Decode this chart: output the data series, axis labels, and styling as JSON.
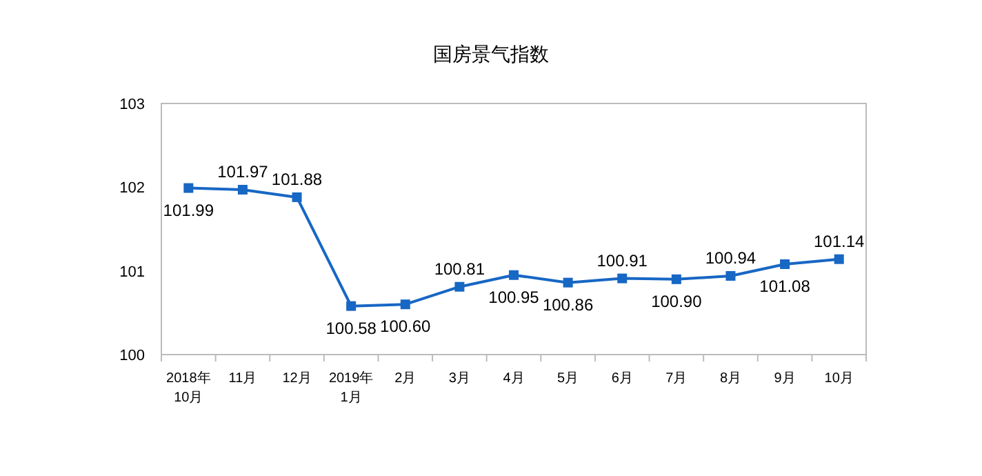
{
  "chart_data": {
    "type": "line",
    "title": "国房景气指数",
    "categories": [
      "2018年\n10月",
      "11月",
      "12月",
      "2019年\n1月",
      "2月",
      "3月",
      "4月",
      "5月",
      "6月",
      "7月",
      "8月",
      "9月",
      "10月"
    ],
    "series": [
      {
        "color": "#1767c4",
        "values": [
          101.99,
          101.97,
          101.88,
          100.58,
          100.6,
          100.81,
          100.95,
          100.86,
          100.91,
          100.9,
          100.94,
          101.08,
          101.14
        ],
        "value_labels": [
          "101.99",
          "101.97",
          "101.88",
          "100.58",
          "100.60",
          "100.81",
          "100.95",
          "100.86",
          "100.91",
          "100.90",
          "100.94",
          "101.08",
          "101.14"
        ]
      }
    ],
    "ylim": [
      100,
      103
    ],
    "yticks": [
      100,
      101,
      102,
      103
    ],
    "grid": false,
    "marker": "square",
    "line_style": "solid"
  }
}
